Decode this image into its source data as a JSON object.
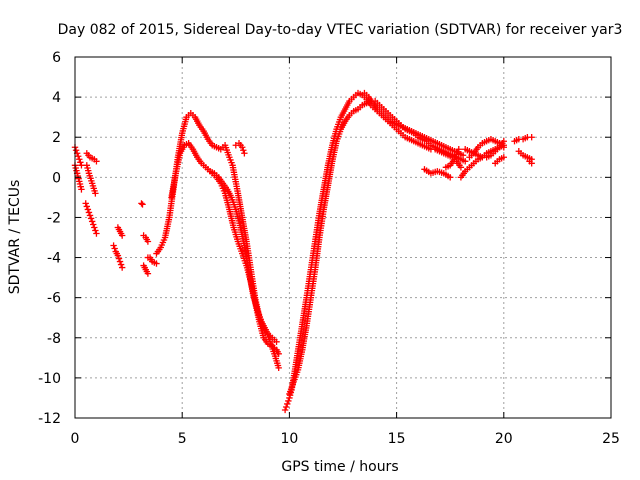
{
  "chart_data": {
    "type": "scatter",
    "title": "Day 082 of 2015, Sidereal Day-to-day VTEC variation (SDTVAR) for receiver yar3",
    "xlabel": "GPS time / hours",
    "ylabel": "SDTVAR / TECUs",
    "xlim": [
      0,
      25
    ],
    "ylim": [
      -12,
      6
    ],
    "xticks": [
      0,
      5,
      10,
      15,
      20,
      25
    ],
    "yticks": [
      -12,
      -10,
      -8,
      -6,
      -4,
      -2,
      0,
      2,
      4,
      6
    ],
    "grid": true,
    "marker": "+",
    "color": "#ff0000",
    "series": [
      {
        "x": [
          0.0,
          0.1,
          0.2,
          0.3
        ],
        "y": [
          1.5,
          1.2,
          0.9,
          0.6
        ]
      },
      {
        "x": [
          0.0,
          0.1,
          0.2,
          0.3
        ],
        "y": [
          0.6,
          0.2,
          -0.2,
          -0.6
        ]
      },
      {
        "x": [
          0.55,
          0.7,
          0.9,
          1.0
        ],
        "y": [
          1.2,
          1.0,
          0.9,
          0.8
        ]
      },
      {
        "x": [
          0.55,
          0.65,
          0.8,
          0.95
        ],
        "y": [
          0.6,
          0.2,
          -0.3,
          -0.8
        ]
      },
      {
        "x": [
          0.5,
          0.6,
          0.7,
          0.8,
          0.9,
          1.0
        ],
        "y": [
          -1.3,
          -1.6,
          -1.9,
          -2.2,
          -2.5,
          -2.8
        ]
      },
      {
        "x": [
          1.8,
          1.9,
          2.0,
          2.1,
          2.2
        ],
        "y": [
          -3.4,
          -3.7,
          -3.9,
          -4.2,
          -4.5
        ]
      },
      {
        "x": [
          2.0,
          2.1,
          2.2
        ],
        "y": [
          -2.5,
          -2.7,
          -2.9
        ]
      },
      {
        "x": [
          3.1,
          3.15
        ],
        "y": [
          -1.3,
          -1.35
        ]
      },
      {
        "x": [
          3.2,
          3.3,
          3.4
        ],
        "y": [
          -2.9,
          -3.0,
          -3.2
        ]
      },
      {
        "x": [
          3.2,
          3.3,
          3.4
        ],
        "y": [
          -4.4,
          -4.6,
          -4.8
        ]
      },
      {
        "x": [
          3.4,
          3.5,
          3.6,
          3.8
        ],
        "y": [
          -4.0,
          -4.0,
          -4.2,
          -4.3
        ]
      },
      {
        "x": [
          3.8,
          4.0,
          4.2,
          4.4,
          4.6,
          4.8,
          5.0,
          5.2,
          5.4,
          5.6,
          5.8,
          6.0,
          6.2,
          6.4,
          6.6,
          6.8,
          7.0,
          7.2,
          7.35,
          7.6,
          7.8,
          8.0,
          8.2,
          8.4,
          8.6,
          8.8,
          9.0,
          9.2,
          9.4
        ],
        "y": [
          -3.8,
          -3.5,
          -3.0,
          -2.0,
          -0.5,
          1.0,
          2.2,
          3.0,
          3.2,
          3.0,
          2.6,
          2.3,
          1.9,
          1.6,
          1.5,
          1.4,
          1.6,
          1.0,
          0.6,
          -0.8,
          -2.0,
          -3.2,
          -4.6,
          -6.0,
          -7.0,
          -7.5,
          -7.8,
          -8.0,
          -8.2
        ]
      },
      {
        "x": [
          4.5,
          4.7,
          4.9,
          5.1,
          5.3,
          5.5,
          5.7,
          5.9,
          6.1,
          6.3,
          6.5,
          6.7,
          6.9,
          7.1,
          7.3,
          7.5,
          7.7,
          7.9,
          8.1,
          8.3,
          8.5,
          8.7,
          8.9,
          9.1,
          9.3,
          9.5
        ],
        "y": [
          -1.0,
          0.2,
          1.2,
          1.6,
          1.7,
          1.4,
          1.0,
          0.7,
          0.5,
          0.3,
          0.2,
          0.0,
          -0.3,
          -0.6,
          -1.0,
          -1.6,
          -2.4,
          -3.4,
          -4.6,
          -5.8,
          -6.6,
          -7.2,
          -7.6,
          -8.2,
          -8.8,
          -9.5
        ]
      },
      {
        "x": [
          6.2,
          6.4,
          6.6,
          6.8,
          7.0,
          7.2,
          7.4,
          7.6,
          7.8,
          8.0,
          8.2,
          8.4,
          8.6,
          8.8,
          9.0,
          9.2,
          9.4,
          9.5
        ],
        "y": [
          0.4,
          0.2,
          0.0,
          -0.3,
          -0.8,
          -1.6,
          -2.5,
          -3.2,
          -3.8,
          -4.4,
          -5.2,
          -6.2,
          -7.2,
          -8.0,
          -8.3,
          -8.4,
          -8.6,
          -8.8
        ]
      },
      {
        "x": [
          7.5,
          7.65,
          7.8,
          7.9
        ],
        "y": [
          1.6,
          1.7,
          1.5,
          1.2
        ]
      },
      {
        "x": [
          9.8,
          9.9,
          10.0,
          10.1,
          10.2,
          10.35,
          10.5,
          10.65,
          10.8,
          11.0,
          11.2,
          11.4,
          11.6,
          11.8,
          12.0,
          12.2,
          12.4,
          12.6,
          12.8,
          13.0,
          13.2,
          13.4,
          13.6,
          13.8,
          14.0,
          14.2,
          14.4,
          14.6,
          14.8,
          15.0,
          15.2,
          15.4,
          15.6,
          15.8,
          16.0,
          16.2,
          16.4,
          16.6,
          16.8,
          17.0,
          17.2,
          17.4,
          17.6,
          17.8,
          18.0
        ],
        "y": [
          -11.6,
          -11.3,
          -11.0,
          -10.6,
          -10.0,
          -9.0,
          -8.0,
          -7.0,
          -6.0,
          -4.6,
          -3.2,
          -1.8,
          -0.6,
          0.6,
          1.6,
          2.4,
          3.0,
          3.4,
          3.8,
          4.0,
          4.2,
          4.1,
          3.9,
          3.6,
          3.4,
          3.2,
          3.0,
          2.8,
          2.6,
          2.4,
          2.2,
          2.0,
          1.9,
          1.8,
          1.7,
          1.6,
          1.5,
          1.4,
          1.4,
          1.3,
          1.2,
          1.1,
          1.0,
          0.8,
          0.5
        ]
      },
      {
        "x": [
          10.0,
          10.2,
          10.4,
          10.6,
          10.8,
          11.0,
          11.2,
          11.4,
          11.6,
          11.8,
          12.0,
          12.2,
          12.4,
          12.6,
          12.8,
          13.0,
          13.2,
          13.4,
          13.6,
          13.8,
          14.0,
          14.2,
          14.4,
          14.6,
          14.8,
          15.0,
          15.2,
          15.4,
          15.6,
          15.8,
          16.0,
          16.2,
          16.4,
          16.6,
          16.8,
          17.0,
          17.2,
          17.4,
          17.6,
          17.8,
          18.0,
          18.2
        ],
        "y": [
          -10.8,
          -10.2,
          -9.6,
          -8.6,
          -7.4,
          -6.0,
          -4.6,
          -3.0,
          -1.6,
          -0.4,
          0.8,
          1.8,
          2.4,
          2.8,
          3.1,
          3.3,
          3.4,
          3.6,
          3.7,
          3.8,
          3.8,
          3.6,
          3.4,
          3.2,
          3.0,
          2.8,
          2.6,
          2.4,
          2.3,
          2.2,
          2.0,
          1.9,
          1.8,
          1.6,
          1.5,
          1.4,
          1.3,
          1.2,
          1.1,
          1.0,
          0.9,
          0.8
        ]
      },
      {
        "x": [
          13.5,
          13.7,
          13.9,
          14.1,
          14.3,
          14.5,
          14.7,
          14.9,
          15.1,
          15.3,
          15.5,
          15.7,
          15.9,
          16.1,
          16.3,
          16.5,
          16.7,
          16.9,
          17.1,
          17.3,
          17.5,
          17.7,
          17.9,
          18.1
        ],
        "y": [
          4.2,
          4.0,
          3.7,
          3.4,
          3.2,
          3.0,
          2.8,
          2.7,
          2.6,
          2.5,
          2.4,
          2.3,
          2.2,
          2.1,
          2.0,
          1.9,
          1.8,
          1.7,
          1.6,
          1.5,
          1.4,
          1.3,
          1.2,
          1.1
        ]
      },
      {
        "x": [
          16.3,
          16.6,
          16.9,
          17.2,
          17.5
        ],
        "y": [
          0.4,
          0.2,
          0.3,
          0.2,
          0.0
        ]
      },
      {
        "x": [
          17.3,
          17.5,
          17.7,
          17.9
        ],
        "y": [
          0.5,
          0.6,
          0.9,
          1.4
        ]
      },
      {
        "x": [
          18.0,
          18.2,
          18.4,
          18.6,
          18.8,
          19.0,
          19.2,
          19.4,
          19.6,
          19.8,
          20.0
        ],
        "y": [
          0.0,
          0.3,
          0.5,
          0.7,
          0.9,
          1.0,
          1.2,
          1.3,
          1.4,
          1.5,
          1.6
        ]
      },
      {
        "x": [
          18.2,
          18.4,
          18.6,
          18.8,
          19.0,
          19.2,
          19.4,
          19.6,
          19.8,
          20.0
        ],
        "y": [
          1.4,
          1.3,
          1.2,
          1.1,
          1.0,
          1.0,
          1.1,
          1.3,
          1.5,
          1.8
        ]
      },
      {
        "x": [
          18.4,
          18.6,
          18.8,
          19.0,
          19.2,
          19.4,
          19.6,
          19.8,
          20.0
        ],
        "y": [
          1.0,
          1.2,
          1.5,
          1.7,
          1.8,
          1.9,
          1.8,
          1.7,
          1.5
        ]
      },
      {
        "x": [
          19.6,
          19.8,
          20.0
        ],
        "y": [
          0.7,
          0.9,
          1.0
        ]
      },
      {
        "x": [
          20.5,
          20.7,
          20.9,
          21.1,
          21.3
        ],
        "y": [
          1.8,
          1.9,
          1.9,
          2.0,
          2.0
        ]
      },
      {
        "x": [
          20.7,
          20.9,
          21.1,
          21.3
        ],
        "y": [
          1.3,
          1.1,
          1.0,
          0.9
        ]
      },
      {
        "x": [
          21.2,
          21.3
        ],
        "y": [
          0.8,
          0.7
        ]
      }
    ]
  }
}
